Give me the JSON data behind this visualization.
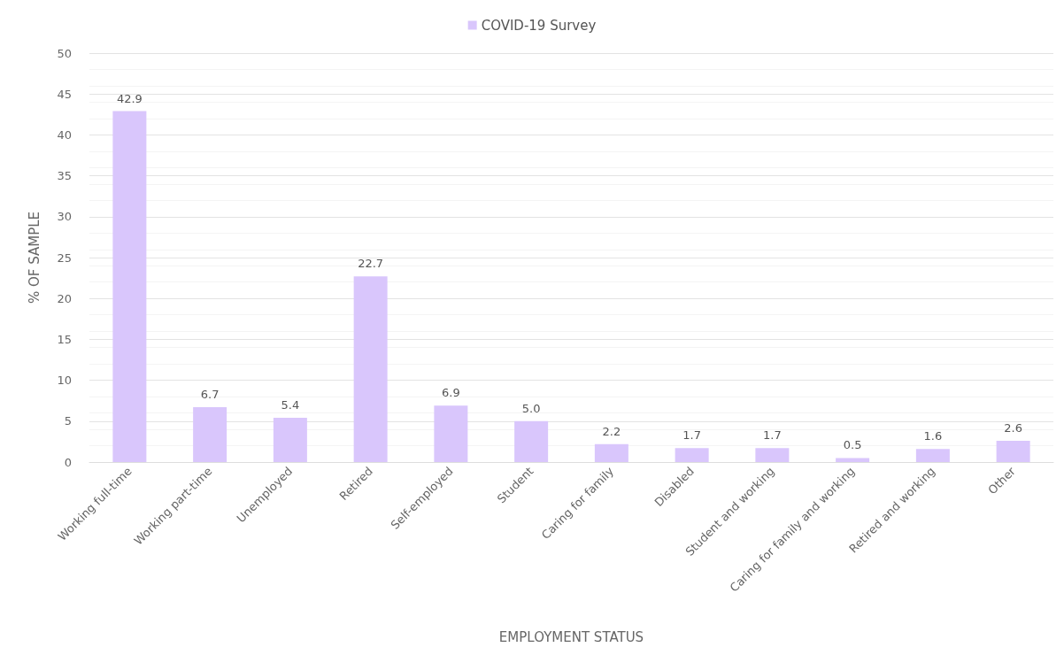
{
  "chart_data": {
    "type": "bar",
    "xlabel": "EMPLOYMENT STATUS",
    "ylabel": "% OF SAMPLE",
    "categories": [
      "Working full-time",
      "Working part-time",
      "Unemployed",
      "Retired",
      "Self-employed",
      "Student",
      "Caring for family",
      "Disabled",
      "Student and working",
      "Caring for family and working",
      "Retired and working",
      "Other"
    ],
    "series": [
      {
        "name": "COVID-19 Survey",
        "color": "#d9c6fc",
        "values": [
          42.9,
          6.7,
          5.4,
          22.7,
          6.9,
          5.0,
          2.2,
          1.7,
          1.7,
          0.5,
          1.6,
          2.6
        ],
        "value_labels": [
          "42.9",
          "6.7",
          "5.4",
          "22.7",
          "6.9",
          "5.0",
          "2.2",
          "1.7",
          "1.7",
          "0.5",
          "1.6",
          "2.6"
        ]
      }
    ],
    "ylim": [
      0,
      50
    ],
    "yticks": [
      0,
      5,
      10,
      15,
      20,
      25,
      30,
      35,
      40,
      45,
      50
    ],
    "grid": "y",
    "legend": "top"
  }
}
